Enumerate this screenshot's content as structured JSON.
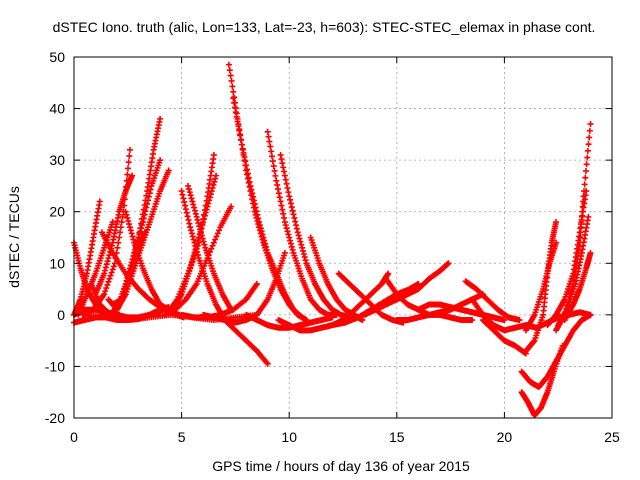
{
  "chart_data": {
    "type": "scatter",
    "title": "dSTEC Iono. truth (alic, Lon=133, Lat=-23, h=603): STEC-STEC_elemax in phase cont.",
    "xlabel": "GPS time / hours of day 136 of year 2015",
    "ylabel": "dSTEC  / TECUs",
    "xlim": [
      0,
      25
    ],
    "ylim": [
      -20,
      50
    ],
    "xticks": [
      0,
      5,
      10,
      15,
      20,
      25
    ],
    "yticks": [
      -20,
      -10,
      0,
      10,
      20,
      30,
      40,
      50
    ],
    "xtick_labels": [
      "0",
      "5",
      "10",
      "15",
      "20",
      "25"
    ],
    "ytick_labels": [
      "-20",
      "-10",
      "0",
      "10",
      "20",
      "30",
      "40",
      "50"
    ],
    "grid": true,
    "marker": "plus",
    "color": "#ff0000",
    "series": [
      {
        "x": [
          0.0,
          0.3,
          0.6,
          1.0,
          1.3,
          1.6,
          2.0
        ],
        "y": [
          14,
          9,
          5,
          2,
          0.5,
          0,
          0.5
        ]
      },
      {
        "x": [
          0.0,
          0.5,
          1.0,
          1.5,
          2.0,
          2.5,
          3.0,
          3.5,
          4.0,
          4.4
        ],
        "y": [
          -1.5,
          -1.0,
          -0.5,
          -0.5,
          -1,
          -1,
          -0.8,
          0,
          1,
          1.5
        ]
      },
      {
        "x": [
          0.0,
          0.3,
          0.6,
          0.9,
          1.2
        ],
        "y": [
          0,
          3,
          8,
          15,
          22
        ]
      },
      {
        "x": [
          0.0,
          0.5,
          1.0,
          1.5,
          2.0,
          2.5,
          3.0,
          3.5,
          4.0
        ],
        "y": [
          0,
          1,
          1,
          0.5,
          0,
          -0.5,
          -0.5,
          0,
          0.5
        ]
      },
      {
        "x": [
          0.2,
          0.6,
          1.0,
          1.4,
          1.8
        ],
        "y": [
          0,
          4,
          8,
          13,
          18
        ]
      },
      {
        "x": [
          0.4,
          0.9,
          1.4,
          1.9,
          2.3,
          2.6
        ],
        "y": [
          0,
          1,
          4,
          10,
          20,
          32
        ]
      },
      {
        "x": [
          0.8,
          1.2,
          1.7,
          2.2,
          2.6,
          3.0,
          3.3
        ],
        "y": [
          6,
          2,
          0,
          3,
          8,
          13,
          16
        ]
      },
      {
        "x": [
          1.0,
          1.4,
          1.8,
          2.1,
          2.4,
          2.7
        ],
        "y": [
          4,
          8,
          14,
          20,
          24,
          27
        ]
      },
      {
        "x": [
          1.6,
          2.0,
          2.4,
          2.8,
          3.2,
          3.6,
          4.0
        ],
        "y": [
          3,
          1,
          6,
          12,
          18,
          25,
          30
        ]
      },
      {
        "x": [
          1.8,
          2.2,
          2.6,
          3.0,
          3.4,
          3.7,
          4.0
        ],
        "y": [
          2,
          3,
          8,
          15,
          24,
          32,
          38
        ]
      },
      {
        "x": [
          2.0,
          2.4,
          2.8,
          3.2,
          3.6,
          4.0,
          4.4
        ],
        "y": [
          1,
          4,
          9,
          14,
          19,
          24,
          28
        ]
      },
      {
        "x": [
          2.4,
          2.8,
          3.2,
          3.6,
          4.0,
          4.4,
          4.8,
          5.1
        ],
        "y": [
          20,
          14,
          9,
          5,
          2,
          1,
          0,
          -0.5
        ]
      },
      {
        "x": [
          1.3,
          1.8,
          2.4,
          3.0,
          3.5,
          4.0,
          4.5,
          4.9
        ],
        "y": [
          16,
          12,
          8,
          5,
          3,
          1.5,
          0.5,
          0
        ]
      },
      {
        "x": [
          5.0,
          5.4,
          5.8,
          6.2,
          6.6,
          7.0,
          7.5,
          8.0,
          8.5,
          9.0
        ],
        "y": [
          24,
          17,
          11,
          6,
          2,
          -1,
          -3,
          -5,
          -7,
          -9.5
        ]
      },
      {
        "x": [
          5.3,
          5.7,
          6.1,
          6.5,
          6.9,
          7.3
        ],
        "y": [
          25,
          19,
          13,
          8,
          4,
          1
        ]
      },
      {
        "x": [
          4.3,
          4.8,
          5.3,
          5.8,
          6.2,
          6.5
        ],
        "y": [
          0,
          3,
          8,
          14,
          23,
          31
        ]
      },
      {
        "x": [
          4.6,
          5.0,
          5.4,
          5.8,
          6.2,
          6.6
        ],
        "y": [
          1,
          4,
          9,
          15,
          21,
          27
        ]
      },
      {
        "x": [
          4.2,
          4.7,
          5.2,
          5.7,
          6.2,
          6.8,
          7.3
        ],
        "y": [
          0,
          1,
          3,
          6,
          11,
          17,
          21
        ]
      },
      {
        "x": [
          5.0,
          5.6,
          6.2,
          6.8,
          7.4,
          8.0,
          8.5
        ],
        "y": [
          0,
          -0.5,
          -0.5,
          0,
          1,
          3,
          6
        ]
      },
      {
        "x": [
          6.0,
          6.5,
          7.0,
          7.5,
          8.0,
          8.5,
          9.0,
          9.4,
          9.8
        ],
        "y": [
          0,
          -0.5,
          -1,
          -1.5,
          -1,
          0,
          3,
          7,
          12
        ]
      },
      {
        "x": [
          7.2,
          7.6,
          8.0,
          8.4,
          8.8,
          9.2,
          9.6,
          10.0,
          10.4,
          10.8
        ],
        "y": [
          48.5,
          38,
          28,
          20,
          14,
          9,
          5,
          2,
          0,
          -1
        ]
      },
      {
        "x": [
          7.4,
          7.8,
          8.2,
          8.6,
          9.0,
          9.4,
          9.8,
          10.2,
          10.6
        ],
        "y": [
          42,
          33,
          25,
          18,
          12,
          8,
          4,
          1,
          -0.5
        ]
      },
      {
        "x": [
          9.0,
          9.4,
          9.8,
          10.2,
          10.6,
          11.0,
          11.4,
          11.8,
          12.2
        ],
        "y": [
          35.5,
          26,
          18,
          12,
          7,
          3,
          1,
          0,
          0
        ]
      },
      {
        "x": [
          9.6,
          10.0,
          10.4,
          10.8,
          11.2,
          11.6,
          12.0,
          12.4,
          12.8
        ],
        "y": [
          31,
          23,
          16,
          10,
          6,
          3,
          1,
          0,
          -0.5
        ]
      },
      {
        "x": [
          8.0,
          8.5,
          9.0,
          9.5,
          10.0,
          10.5,
          11.0,
          11.5,
          12.0
        ],
        "y": [
          0,
          -1,
          -2,
          -2.5,
          -2.5,
          -2,
          -1.5,
          -1,
          -0.5
        ]
      },
      {
        "x": [
          9.5,
          10.0,
          10.5,
          11.0,
          11.5,
          12.0,
          12.5,
          13.0
        ],
        "y": [
          -1,
          -2,
          -3,
          -3,
          -2.5,
          -2,
          -1,
          0
        ]
      },
      {
        "x": [
          11.0,
          11.4,
          11.8,
          12.2,
          12.6,
          13.0,
          13.4
        ],
        "y": [
          15,
          10,
          6,
          3,
          1,
          0,
          -1
        ]
      },
      {
        "x": [
          0.5,
          1.5,
          2.5,
          3.5,
          4.5,
          5.5,
          6.5,
          7.5,
          8.5
        ],
        "y": [
          0,
          -0.5,
          -1,
          -0.5,
          0,
          -0.5,
          -1,
          -0.5,
          0
        ]
      },
      {
        "x": [
          12.3,
          12.8,
          13.3,
          13.8,
          14.3,
          14.8,
          15.3
        ],
        "y": [
          8,
          6,
          4,
          2,
          0,
          -1,
          -1.5
        ]
      },
      {
        "x": [
          12.8,
          13.3,
          13.8,
          14.3,
          14.6
        ],
        "y": [
          0,
          2,
          4,
          6,
          8
        ]
      },
      {
        "x": [
          12.0,
          12.6,
          13.2,
          13.8,
          14.4,
          15.0,
          15.6,
          16.0
        ],
        "y": [
          -2,
          -1.5,
          -0.5,
          1,
          2.5,
          4,
          5,
          6
        ]
      },
      {
        "x": [
          13.5,
          14.0,
          14.5,
          15.0,
          15.5,
          16.0,
          16.5,
          17.0,
          17.4
        ],
        "y": [
          0,
          1,
          2,
          3,
          4,
          5,
          7,
          8.5,
          10
        ]
      },
      {
        "x": [
          14.5,
          15.0,
          15.5,
          16.0,
          16.5,
          17.0,
          17.5,
          18.0,
          18.5
        ],
        "y": [
          7,
          4,
          2,
          1,
          0,
          0,
          -0.5,
          -1,
          -1
        ]
      },
      {
        "x": [
          15.0,
          15.5,
          16.0,
          16.5,
          17.0,
          17.5,
          18.0,
          18.5,
          19.0
        ],
        "y": [
          -1,
          -1,
          -0.5,
          0,
          0.5,
          1,
          2,
          3,
          4
        ]
      },
      {
        "x": [
          16.0,
          16.5,
          17.0,
          17.5,
          18.0,
          18.5,
          19.0,
          19.5,
          20.0
        ],
        "y": [
          1,
          2,
          2,
          1.5,
          1,
          0.5,
          0,
          -0.5,
          -1
        ]
      },
      {
        "x": [
          18.2,
          18.7,
          19.2,
          19.7,
          20.2,
          20.7
        ],
        "y": [
          6.5,
          5,
          3,
          1,
          -0.5,
          -1
        ]
      },
      {
        "x": [
          18.5,
          19.0,
          19.5,
          20.0,
          20.5,
          21.0
        ],
        "y": [
          3,
          0,
          -2,
          -3,
          -2.5,
          -2
        ]
      },
      {
        "x": [
          19.0,
          19.5,
          20.0,
          20.5,
          21.0
        ],
        "y": [
          -1,
          -3,
          -5,
          -6,
          -7.5
        ]
      },
      {
        "x": [
          20.8,
          21.1,
          21.4,
          21.7,
          22.0,
          22.3,
          22.7
        ],
        "y": [
          -15,
          -17,
          -19.5,
          -18,
          -15,
          -11,
          -6
        ]
      },
      {
        "x": [
          20.8,
          21.2,
          21.6,
          22.0,
          22.4,
          22.8,
          23.2,
          23.6,
          24.0
        ],
        "y": [
          -11,
          -13,
          -14,
          -12,
          -9,
          -6,
          -3,
          -1,
          0
        ]
      },
      {
        "x": [
          21.0,
          21.4,
          21.8,
          22.0,
          22.2,
          22.4
        ],
        "y": [
          -7,
          -5,
          0,
          8,
          14,
          18
        ]
      },
      {
        "x": [
          21.0,
          21.4,
          21.8,
          22.1,
          22.4
        ],
        "y": [
          -3,
          0,
          5,
          10,
          14
        ]
      },
      {
        "x": [
          22.0,
          22.4,
          22.8,
          23.2,
          23.5,
          23.8
        ],
        "y": [
          -2,
          0,
          3,
          8,
          16,
          24
        ]
      },
      {
        "x": [
          22.4,
          22.8,
          23.2,
          23.5,
          23.7,
          24.0
        ],
        "y": [
          -3,
          0,
          6,
          14,
          24,
          37
        ]
      },
      {
        "x": [
          22.5,
          22.9,
          23.3,
          23.6,
          23.9
        ],
        "y": [
          -2,
          1,
          6,
          12,
          19
        ]
      },
      {
        "x": [
          22.8,
          23.2,
          23.5,
          23.8,
          24.0
        ],
        "y": [
          -1,
          2,
          5,
          9,
          12
        ]
      },
      {
        "x": [
          21.0,
          21.5,
          22.0,
          22.5,
          23.0,
          23.5,
          24.0
        ],
        "y": [
          -2,
          -2.5,
          -1.5,
          -0.5,
          0,
          0.5,
          0
        ]
      }
    ]
  }
}
